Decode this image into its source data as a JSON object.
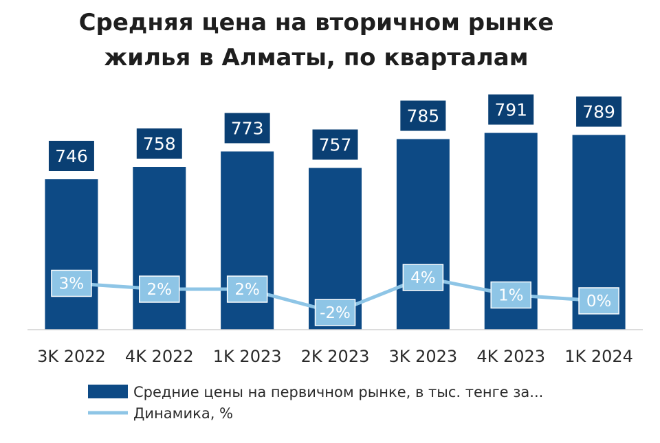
{
  "chart_data": {
    "type": "bar",
    "title": "Средняя цена на вторичном рынке жилья в Алматы, по кварталам",
    "title_lines": [
      "Средняя цена на вторичном рынке",
      "жилья в Алматы, по кварталам"
    ],
    "categories": [
      "3K 2022",
      "4K 2022",
      "1K 2023",
      "2K 2023",
      "3K 2023",
      "4K 2023",
      "1K 2024"
    ],
    "series": [
      {
        "name": "Средние цены на первичном рынке, в тыс. тенге за...",
        "kind": "bar",
        "values": [
          746,
          758,
          773,
          757,
          785,
          791,
          789
        ],
        "labels": [
          "746",
          "758",
          "773",
          "757",
          "785",
          "791",
          "789"
        ],
        "color": "#0d4a85"
      },
      {
        "name": "Динамика, %",
        "kind": "line",
        "values": [
          3,
          2,
          2,
          -2,
          4,
          1,
          0
        ],
        "labels": [
          "3%",
          "2%",
          "2%",
          "-2%",
          "4%",
          "1%",
          "0%"
        ],
        "color": "#8ec5e6"
      }
    ],
    "xlabel": "",
    "ylabel": "",
    "grid": false,
    "legend_position": "bottom-left"
  }
}
